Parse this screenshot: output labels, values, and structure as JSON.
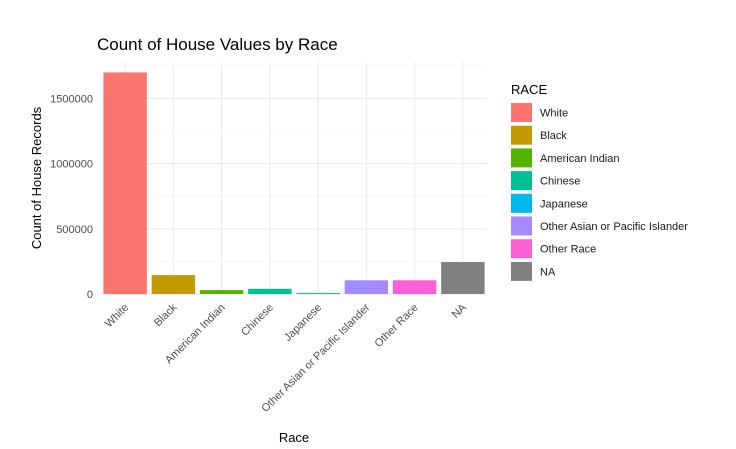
{
  "chart_data": {
    "type": "bar",
    "title": "Count of House Values by Race",
    "xlabel": "Race",
    "ylabel": "Count of House Records",
    "categories": [
      "White",
      "Black",
      "American Indian",
      "Chinese",
      "Japanese",
      "Other Asian or Pacific Islander",
      "Other Race",
      "NA"
    ],
    "values": [
      1700000,
      145000,
      30000,
      40000,
      8000,
      105000,
      105000,
      245000
    ],
    "colors": [
      "#F8766D",
      "#C49A00",
      "#53B400",
      "#00C094",
      "#00B6EB",
      "#A58AFF",
      "#FB61D7",
      "#808080"
    ],
    "yticks": [
      0,
      500000,
      1000000,
      1500000
    ],
    "ytick_labels": [
      "0",
      "500000",
      "1000000",
      "1500000"
    ],
    "ylim": [
      0,
      1780000
    ],
    "grid": true,
    "legend": {
      "title": "RACE",
      "placement": "right",
      "entries": [
        "White",
        "Black",
        "American Indian",
        "Chinese",
        "Japanese",
        "Other Asian or Pacific Islander",
        "Other Race",
        "NA"
      ]
    }
  }
}
